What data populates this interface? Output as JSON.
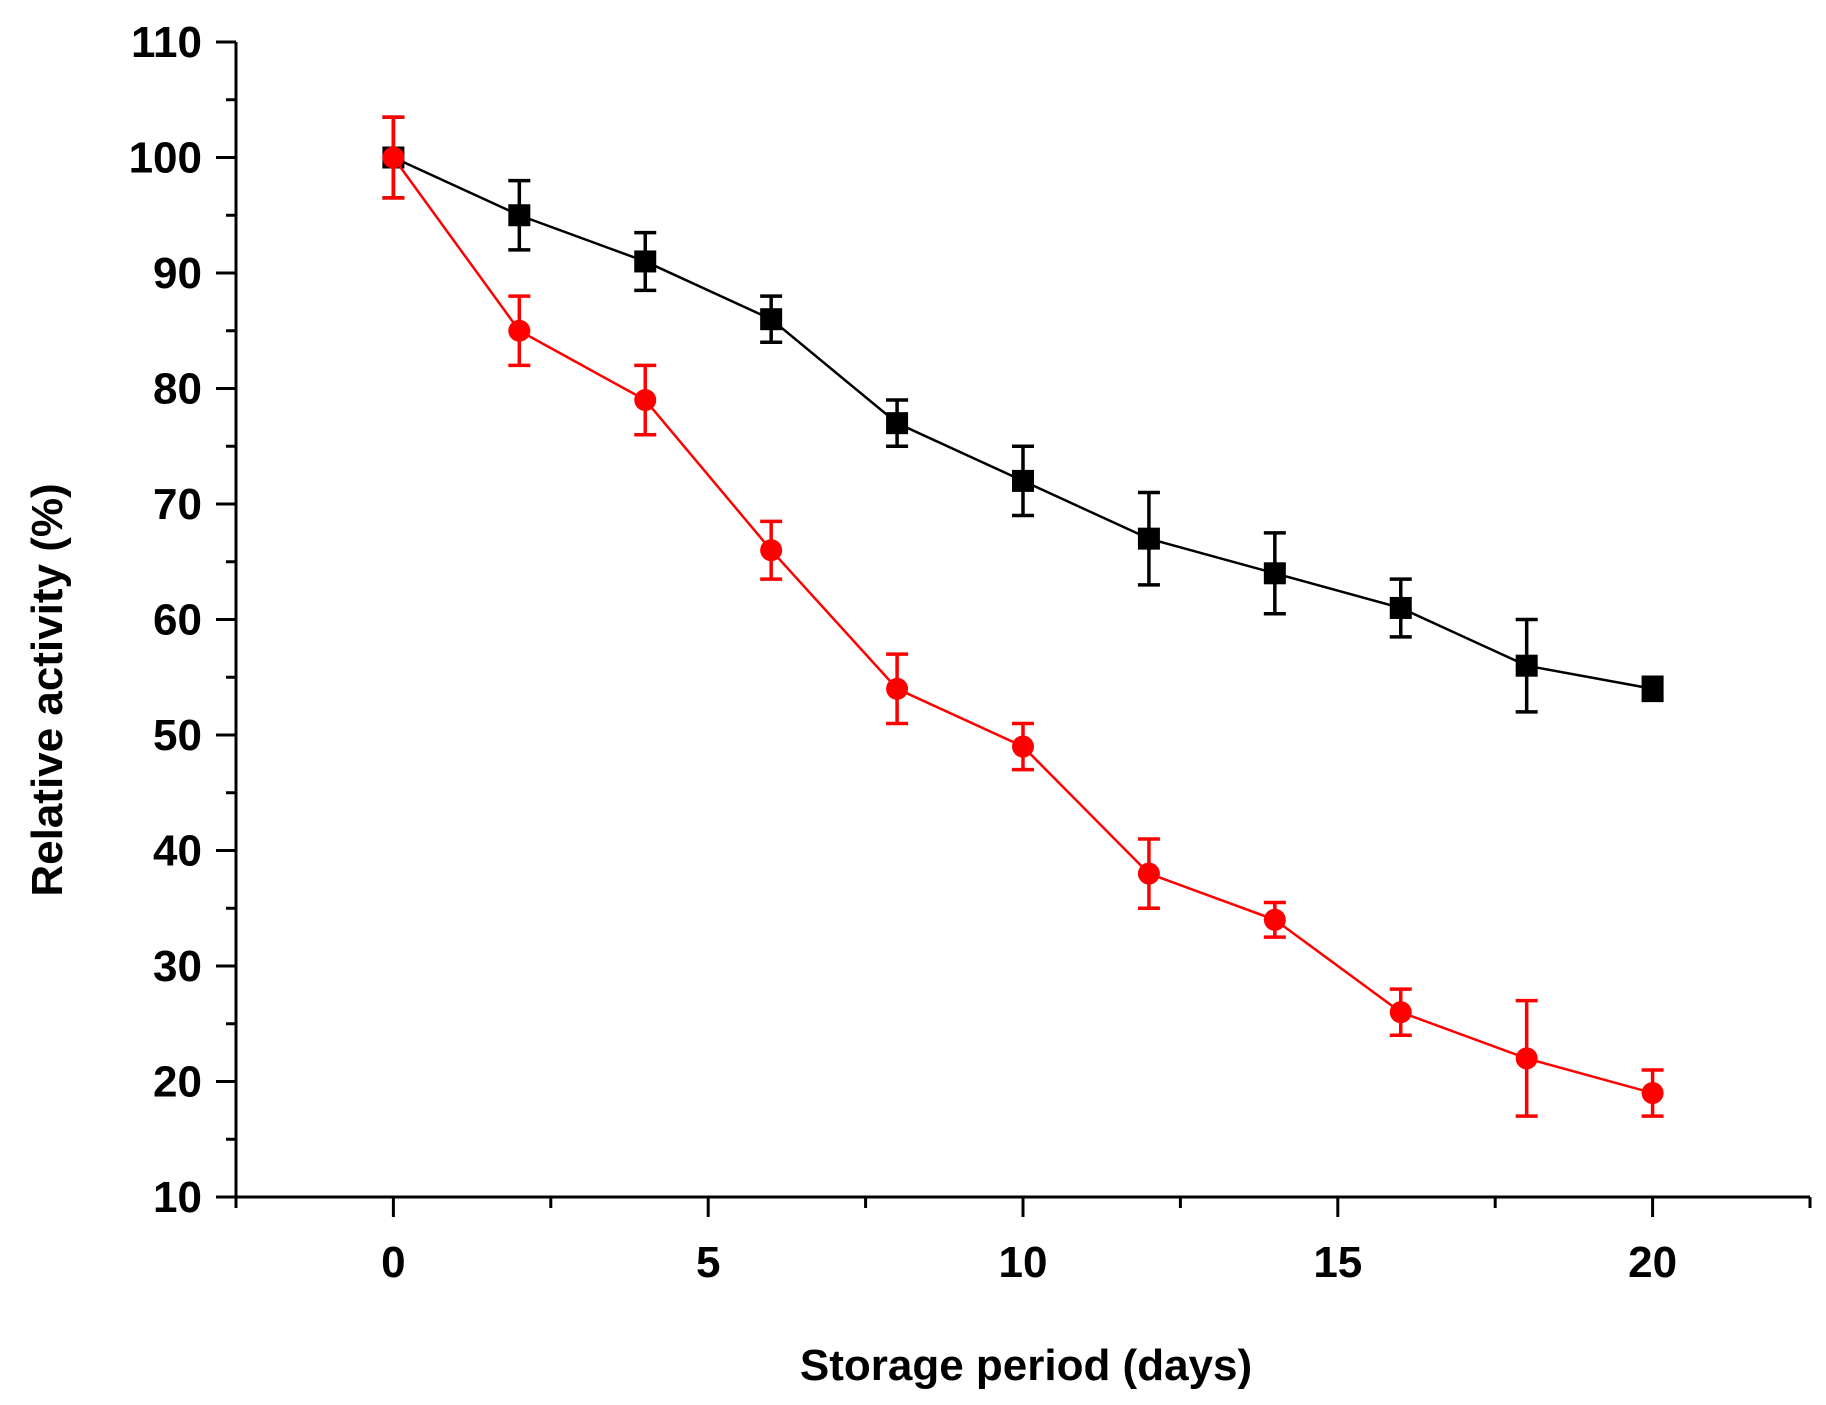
{
  "chart_data": {
    "type": "line",
    "title": "",
    "xlabel": "Storage period (days)",
    "ylabel": "Relative activity (%)",
    "xlim": [
      -2.5,
      22.5
    ],
    "ylim": [
      10,
      110
    ],
    "xticks": [
      0,
      5,
      10,
      15,
      20
    ],
    "xticks_minor": [
      -2.5,
      2.5,
      7.5,
      12.5,
      17.5,
      22.5
    ],
    "yticks": [
      10,
      20,
      30,
      40,
      50,
      60,
      70,
      80,
      90,
      100,
      110
    ],
    "grid": false,
    "legend": "none",
    "x": [
      0,
      2,
      4,
      6,
      8,
      10,
      12,
      14,
      16,
      18,
      20
    ],
    "series": [
      {
        "name": "series-black",
        "color": "#000000",
        "marker": "square",
        "values": [
          100,
          95,
          91,
          86,
          77,
          72,
          67,
          64,
          61,
          56,
          54
        ],
        "errors": [
          3.5,
          3.0,
          2.5,
          2.0,
          2.0,
          3.0,
          4.0,
          3.5,
          2.5,
          4.0,
          1.0
        ]
      },
      {
        "name": "series-red",
        "color": "#ff0000",
        "marker": "circle",
        "values": [
          100,
          85,
          79,
          66,
          54,
          49,
          38,
          34,
          26,
          22,
          19
        ],
        "errors": [
          3.5,
          3.0,
          3.0,
          2.5,
          3.0,
          2.0,
          3.0,
          1.5,
          2.0,
          5.0,
          2.0
        ]
      }
    ]
  }
}
